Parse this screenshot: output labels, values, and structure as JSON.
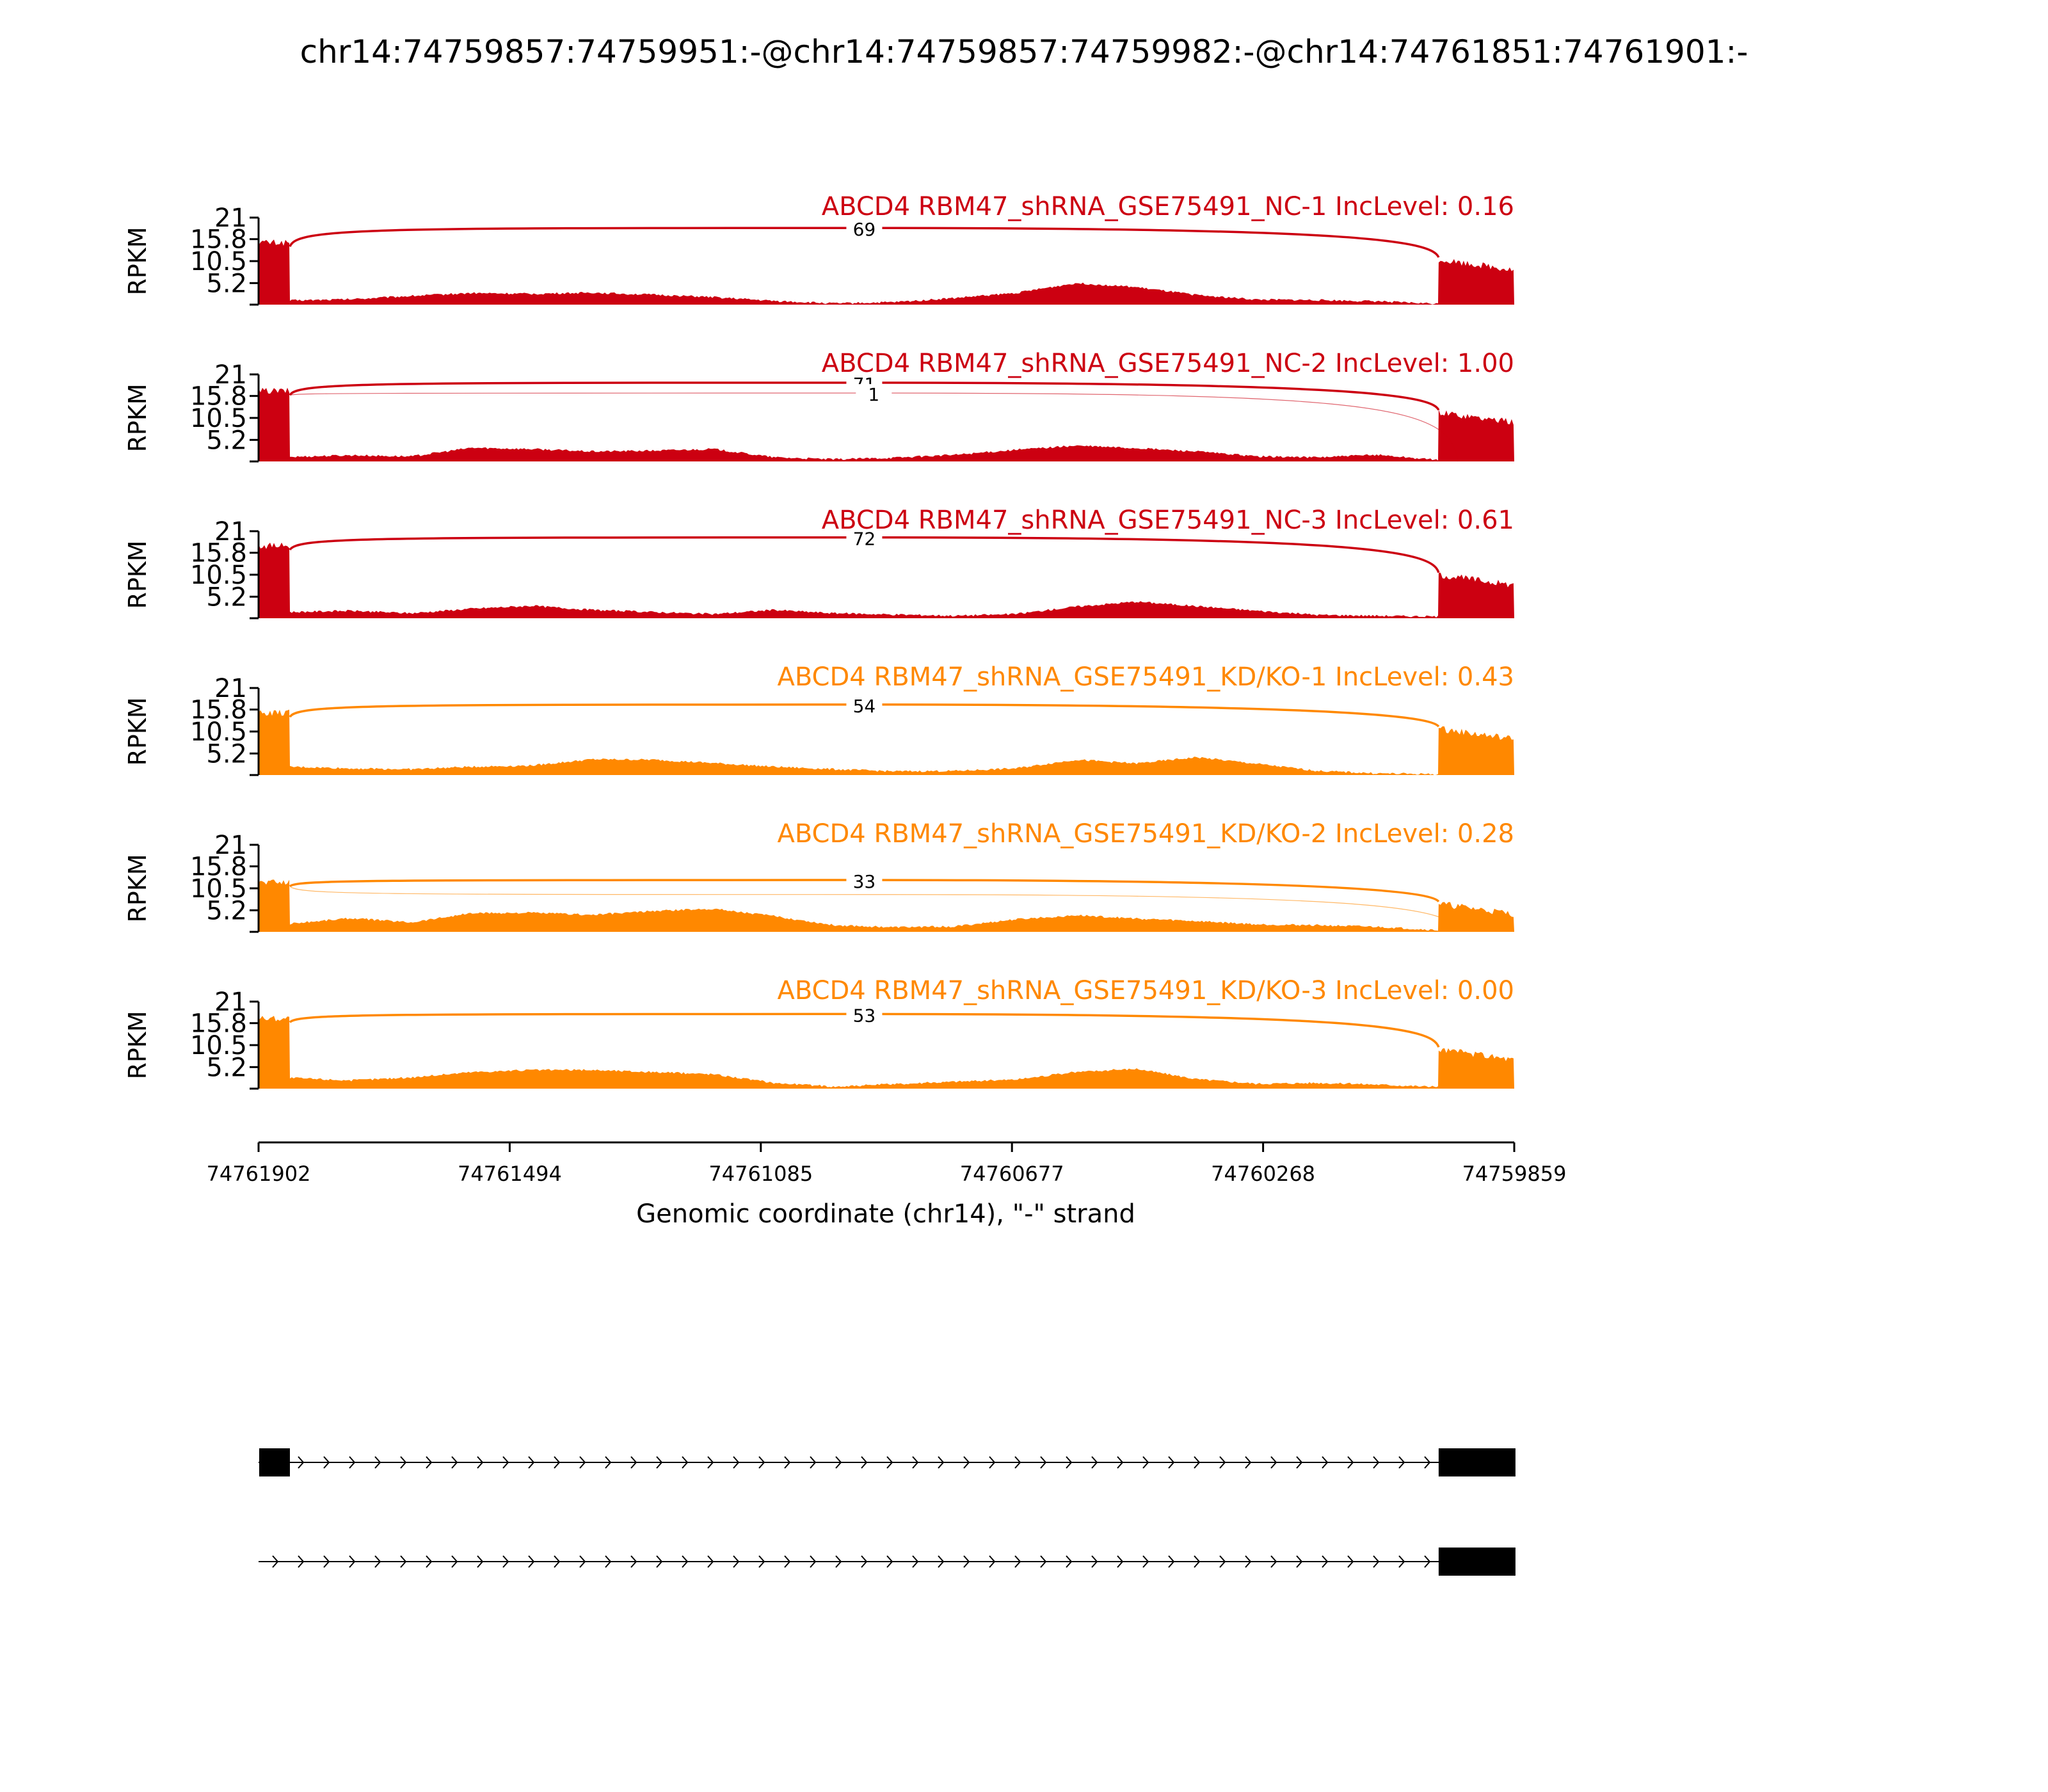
{
  "figure": {
    "title": "chr14:74759857:74759951:-@chr14:74759857:74759982:-@chr14:74761851:74761901:-",
    "xlabel": "Genomic coordinate (chr14), \"-\" strand",
    "xticks": [
      "74761902",
      "74761494",
      "74761085",
      "74760677",
      "74760268",
      "74759859"
    ]
  },
  "chart_data": {
    "type": "area",
    "title": "chr14:74759857:74759951:-@chr14:74759857:74759982:-@chr14:74761851:74761901:-",
    "xlabel": "Genomic coordinate (chr14), \"-\" strand",
    "ylabel": "RPKM",
    "xlim": [
      74761902,
      74759859
    ],
    "x_direction": "descending (minus strand)",
    "ylim": [
      0,
      21
    ],
    "yticks": [
      "21",
      "15.8",
      "10.5",
      "5.2"
    ],
    "grid": false,
    "series": [
      {
        "name": "ABCD4 RBM47_shRNA_GSE75491_NC-1 IncLevel: 0.16",
        "color": "#cc0011",
        "exon_left_level": 15.0,
        "exon_right_level": 8.4,
        "intron_levels": [
          1.0,
          1.3,
          2.1,
          2.8,
          2.6,
          2.9,
          2.4,
          1.8,
          0.9,
          0.3,
          0.6,
          1.6,
          2.8,
          5.2,
          4.2,
          2.3,
          1.2,
          1.1,
          0.8,
          0.2
        ],
        "junctions": [
          {
            "count": "69",
            "from": 74761851,
            "to": 74759982,
            "height": 18.5,
            "weight": "major"
          }
        ]
      },
      {
        "name": "ABCD4 RBM47_shRNA_GSE75491_NC-2 IncLevel: 1.00",
        "color": "#cc0011",
        "exon_left_level": 17.0,
        "exon_right_level": 9.4,
        "intron_levels": [
          1.1,
          1.5,
          1.2,
          3.3,
          3.0,
          2.4,
          2.6,
          3.0,
          1.0,
          0.5,
          0.9,
          1.6,
          2.8,
          3.8,
          3.2,
          2.4,
          1.2,
          1.0,
          1.6,
          0.3
        ],
        "junctions": [
          {
            "count": "71",
            "from": 74761851,
            "to": 74759982,
            "height": 19.0,
            "weight": "major"
          },
          {
            "count": "1",
            "from": 74761851,
            "to": 74759951,
            "height": 16.5,
            "weight": "minor"
          }
        ]
      },
      {
        "name": "ABCD4 RBM47_shRNA_GSE75491_NC-3 IncLevel: 0.61",
        "color": "#cc0011",
        "exon_left_level": 17.5,
        "exon_right_level": 8.0,
        "intron_levels": [
          1.5,
          1.8,
          1.2,
          2.3,
          3.0,
          2.0,
          1.5,
          1.0,
          2.0,
          1.2,
          0.9,
          0.6,
          1.0,
          2.8,
          4.0,
          2.9,
          1.8,
          0.8,
          0.6,
          0.4
        ],
        "junctions": [
          {
            "count": "72",
            "from": 74761851,
            "to": 74759982,
            "height": 19.5,
            "weight": "major"
          }
        ]
      },
      {
        "name": "ABCD4 RBM47_shRNA_GSE75491_KD/KO-1 IncLevel: 0.43",
        "color": "#ff8800",
        "exon_left_level": 15.0,
        "exon_right_level": 8.7,
        "intron_levels": [
          2.0,
          1.6,
          1.4,
          2.0,
          2.3,
          3.8,
          3.7,
          2.9,
          2.0,
          1.4,
          0.9,
          1.0,
          1.6,
          3.7,
          2.8,
          4.3,
          2.7,
          1.0,
          0.4,
          0.2
        ],
        "junctions": [
          {
            "count": "54",
            "from": 74761851,
            "to": 74759982,
            "height": 17.0,
            "weight": "major"
          }
        ]
      },
      {
        "name": "ABCD4 RBM47_shRNA_GSE75491_KD/KO-2 IncLevel: 0.28",
        "color": "#ff8800",
        "exon_left_level": 12.0,
        "exon_right_level": 4.3,
        "intron_levels": [
          2.0,
          3.3,
          2.3,
          4.5,
          4.6,
          4.1,
          5.0,
          5.6,
          3.8,
          1.6,
          1.1,
          1.3,
          3.0,
          4.0,
          3.2,
          2.6,
          1.8,
          1.6,
          1.2,
          0.4
        ],
        "junctions": [
          {
            "count": "33",
            "from": 74761851,
            "to": 74759982,
            "height": 12.5,
            "weight": "major"
          },
          {
            "count": "",
            "from": 74761851,
            "to": 74759951,
            "height": 9.0,
            "weight": "minor"
          }
        ]
      },
      {
        "name": "ABCD4 RBM47_shRNA_GSE75491_KD/KO-3 IncLevel: 0.00",
        "color": "#ff8800",
        "exon_left_level": 17.0,
        "exon_right_level": 7.0,
        "intron_levels": [
          2.6,
          2.0,
          2.7,
          4.0,
          4.5,
          4.5,
          4.0,
          3.5,
          1.4,
          0.5,
          1.1,
          1.7,
          2.2,
          4.0,
          4.8,
          2.3,
          1.2,
          1.4,
          1.0,
          0.4
        ],
        "junctions": [
          {
            "count": "53",
            "from": 74761851,
            "to": 74759982,
            "height": 18.0,
            "weight": "major"
          }
        ]
      }
    ],
    "isoforms": [
      {
        "exons": [
          [
            74761901,
            74761851
          ],
          [
            74759982,
            74759857
          ]
        ],
        "strand": "-"
      },
      {
        "exons": [
          [
            74759982,
            74759857
          ]
        ],
        "strand": "-"
      }
    ]
  }
}
